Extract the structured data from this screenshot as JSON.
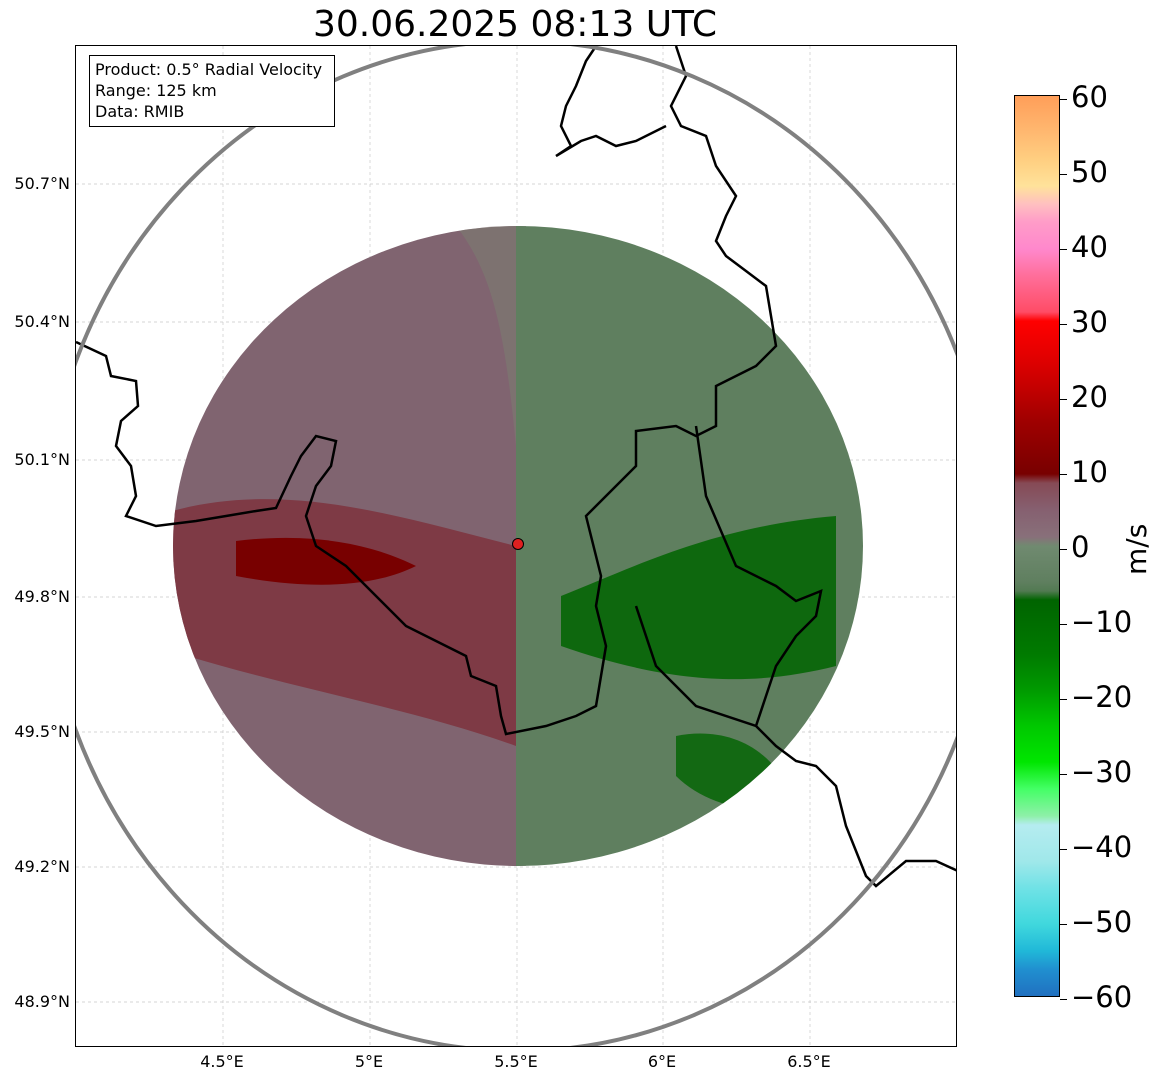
{
  "title": "30.06.2025 08:13 UTC",
  "info_box": {
    "line1": "Product: 0.5° Radial Velocity",
    "line2": "Range: 125 km",
    "line3": "Data: RMIB"
  },
  "lat_labels": [
    "50.7°N",
    "50.4°N",
    "50.1°N",
    "49.8°N",
    "49.5°N",
    "49.2°N",
    "48.9°N"
  ],
  "lon_labels": [
    "4.5°E",
    "5°E",
    "5.5°E",
    "6°E",
    "6.5°E"
  ],
  "colorbar": {
    "label": "m/s",
    "ticks": [
      "60",
      "50",
      "40",
      "30",
      "20",
      "10",
      "0",
      "−10",
      "−20",
      "−30",
      "−40",
      "−50",
      "−60"
    ],
    "min": -60,
    "max": 60
  },
  "colors": {
    "approaching_strong": "#006400",
    "approaching_weak": "#5a7d5a",
    "receding_weak": "#7d5a68",
    "receding_strong": "#780000",
    "range_ring": "#808080",
    "radar_site": "#e02020"
  }
}
